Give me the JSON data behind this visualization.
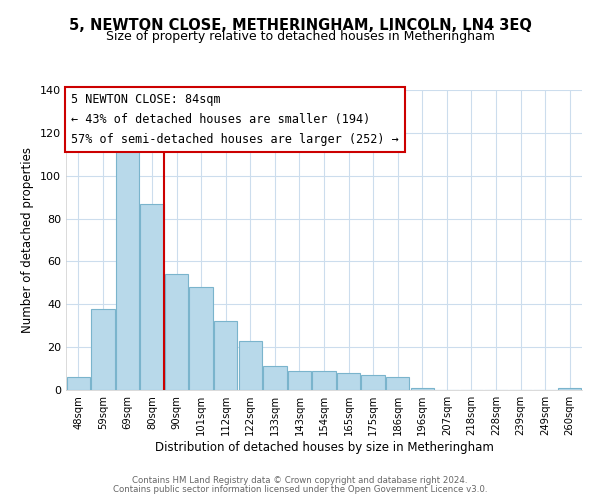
{
  "title": "5, NEWTON CLOSE, METHERINGHAM, LINCOLN, LN4 3EQ",
  "subtitle": "Size of property relative to detached houses in Metheringham",
  "xlabel": "Distribution of detached houses by size in Metheringham",
  "ylabel": "Number of detached properties",
  "bar_labels": [
    "48sqm",
    "59sqm",
    "69sqm",
    "80sqm",
    "90sqm",
    "101sqm",
    "112sqm",
    "122sqm",
    "133sqm",
    "143sqm",
    "154sqm",
    "165sqm",
    "175sqm",
    "186sqm",
    "196sqm",
    "207sqm",
    "218sqm",
    "228sqm",
    "239sqm",
    "249sqm",
    "260sqm"
  ],
  "bar_values": [
    6,
    38,
    115,
    87,
    54,
    48,
    32,
    23,
    11,
    9,
    9,
    8,
    7,
    6,
    1,
    0,
    0,
    0,
    0,
    0,
    1
  ],
  "bar_color": "#b8d9ea",
  "bar_edge_color": "#7ab4cc",
  "vline_x": 3.5,
  "vline_color": "#cc0000",
  "ylim": [
    0,
    140
  ],
  "yticks": [
    0,
    20,
    40,
    60,
    80,
    100,
    120,
    140
  ],
  "annotation_title": "5 NEWTON CLOSE: 84sqm",
  "annotation_line1": "← 43% of detached houses are smaller (194)",
  "annotation_line2": "57% of semi-detached houses are larger (252) →",
  "annotation_box_color": "#ffffff",
  "annotation_box_edge": "#cc0000",
  "footer_line1": "Contains HM Land Registry data © Crown copyright and database right 2024.",
  "footer_line2": "Contains public sector information licensed under the Open Government Licence v3.0.",
  "background_color": "#ffffff",
  "grid_color": "#ccdded",
  "title_fontsize": 10.5,
  "subtitle_fontsize": 9
}
